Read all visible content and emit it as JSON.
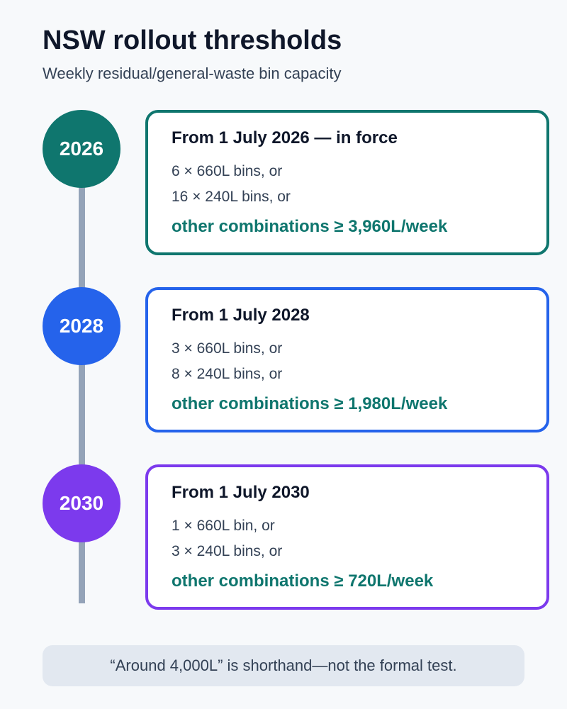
{
  "header": {
    "title": "NSW rollout thresholds",
    "subtitle": "Weekly residual/general-waste bin capacity"
  },
  "colors": {
    "timeline": "#94a3b8",
    "total_text": "#0f766e"
  },
  "milestones": [
    {
      "year": "2026",
      "color": "#0f766e",
      "heading": "From 1 July 2026 — in force",
      "line1": "6 × 660L bins, or",
      "line2": "16 × 240L bins, or",
      "total": "other combinations ≥ 3,960L/week"
    },
    {
      "year": "2028",
      "color": "#2563eb",
      "heading": "From 1 July 2028",
      "line1": "3 × 660L bins, or",
      "line2": "8 × 240L bins, or",
      "total": "other combinations ≥ 1,980L/week"
    },
    {
      "year": "2030",
      "color": "#7c3aed",
      "heading": "From 1 July 2030",
      "line1": "1 × 660L bin, or",
      "line2": "3 × 240L bins, or",
      "total": "other combinations ≥ 720L/week"
    }
  ],
  "note": "“Around 4,000L” is shorthand—not the formal test."
}
